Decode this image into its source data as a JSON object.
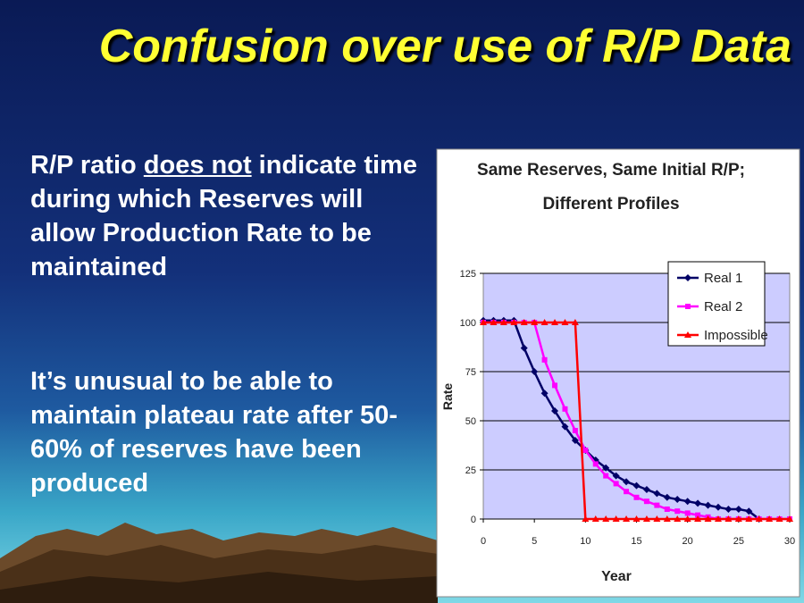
{
  "slide": {
    "title": "Confusion over use of R/P Data",
    "bullets": [
      {
        "parts": [
          "R/P ratio ",
          "does not",
          " indicate time during which Reserves will allow Production Rate to be maintained"
        ]
      },
      {
        "parts": [
          "It’s unusual to be able to maintain plateau rate after 50-60% of reserves have been produced"
        ]
      }
    ]
  },
  "chart_data": {
    "type": "line",
    "title": "Same Reserves, Same Initial R/P;",
    "subtitle": "Different Profiles",
    "x_label": "Year",
    "y_label": "Rate",
    "x": [
      0,
      1,
      2,
      3,
      4,
      5,
      6,
      7,
      8,
      9,
      10,
      11,
      12,
      13,
      14,
      15,
      16,
      17,
      18,
      19,
      20,
      21,
      22,
      23,
      24,
      25,
      26,
      27,
      28,
      29,
      30
    ],
    "series": [
      {
        "name": "Real 1",
        "color": "#000066",
        "marker": "diamond",
        "values": [
          101,
          101,
          101,
          101,
          87,
          75,
          64,
          55,
          47,
          40,
          35,
          30,
          26,
          22,
          19,
          17,
          15,
          13,
          11,
          10,
          9,
          8,
          7,
          6,
          5,
          5,
          4,
          0,
          null,
          null,
          null
        ]
      },
      {
        "name": "Real 2",
        "color": "#ff00ff",
        "marker": "square",
        "values": [
          100,
          100,
          100,
          100,
          100,
          100,
          81,
          68,
          56,
          45,
          35,
          28,
          22,
          18,
          14,
          11,
          9,
          7,
          5,
          4,
          3,
          2,
          1,
          0,
          0,
          0,
          0,
          0,
          0,
          0,
          0
        ]
      },
      {
        "name": "Impossible",
        "color": "#ff0000",
        "marker": "triangle",
        "values": [
          100,
          100,
          100,
          100,
          100,
          100,
          100,
          100,
          100,
          100,
          0,
          0,
          0,
          0,
          0,
          0,
          0,
          0,
          0,
          0,
          0,
          0,
          0,
          0,
          0,
          0,
          0,
          0,
          0,
          0,
          0
        ]
      }
    ],
    "xlim": [
      0,
      30
    ],
    "xticks": [
      0,
      5,
      10,
      15,
      20,
      25,
      30
    ],
    "ylim": [
      0,
      125
    ],
    "yticks": [
      0,
      25,
      50,
      75,
      100,
      125
    ],
    "grid": true,
    "legend": "top-right",
    "plot_background": "#ccccff"
  }
}
